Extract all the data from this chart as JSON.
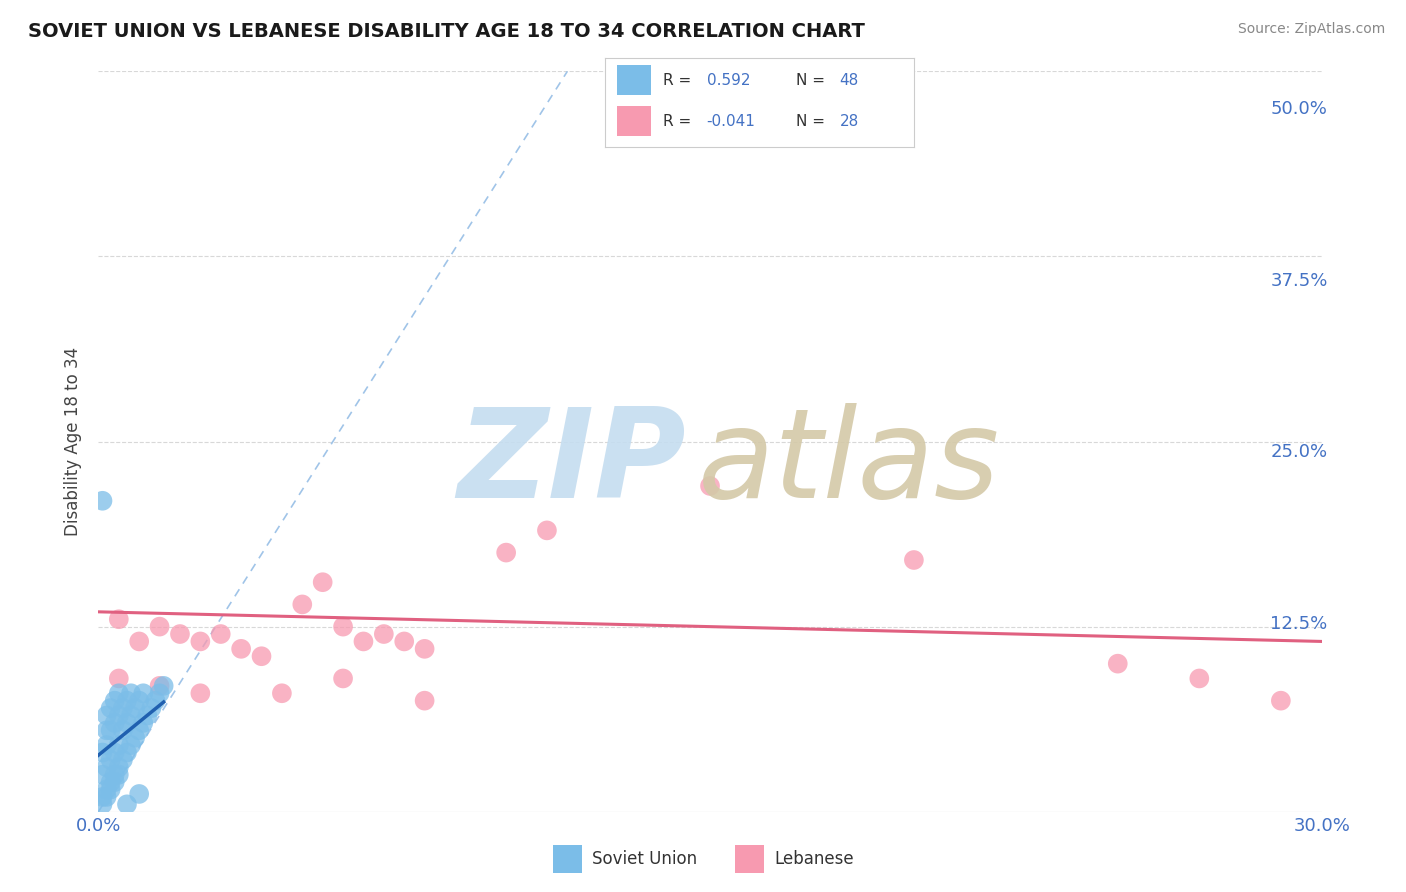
{
  "title": "SOVIET UNION VS LEBANESE DISABILITY AGE 18 TO 34 CORRELATION CHART",
  "source_text": "Source: ZipAtlas.com",
  "ylabel_label": "Disability Age 18 to 34",
  "xlim": [
    0.0,
    0.3
  ],
  "ylim": [
    0.0,
    0.5
  ],
  "xtick_labels": [
    "0.0%",
    "30.0%"
  ],
  "ytick_vals": [
    0.0,
    0.125,
    0.25,
    0.375,
    0.5
  ],
  "ytick_labels": [
    "",
    "12.5%",
    "25.0%",
    "37.5%",
    "50.0%"
  ],
  "soviet_color": "#7bbde8",
  "lebanese_color": "#f79ab0",
  "soviet_R": 0.592,
  "soviet_N": 48,
  "lebanese_R": -0.041,
  "lebanese_N": 28,
  "background_color": "#ffffff",
  "grid_color": "#d8d8d8",
  "soviet_trend_color": "#2060b0",
  "lebanese_trend_color": "#e06080",
  "diag_color": "#a0c4e8",
  "soviet_x": [
    0.001,
    0.001,
    0.001,
    0.001,
    0.002,
    0.002,
    0.002,
    0.002,
    0.002,
    0.003,
    0.003,
    0.003,
    0.003,
    0.004,
    0.004,
    0.004,
    0.004,
    0.005,
    0.005,
    0.005,
    0.005,
    0.006,
    0.006,
    0.006,
    0.007,
    0.007,
    0.007,
    0.008,
    0.008,
    0.008,
    0.009,
    0.009,
    0.01,
    0.01,
    0.011,
    0.011,
    0.012,
    0.013,
    0.014,
    0.015,
    0.016,
    0.001,
    0.002,
    0.003,
    0.004,
    0.005,
    0.007,
    0.01
  ],
  "soviet_y": [
    0.005,
    0.01,
    0.025,
    0.04,
    0.015,
    0.03,
    0.045,
    0.055,
    0.065,
    0.02,
    0.035,
    0.055,
    0.07,
    0.025,
    0.04,
    0.06,
    0.075,
    0.03,
    0.045,
    0.065,
    0.08,
    0.035,
    0.055,
    0.07,
    0.04,
    0.06,
    0.075,
    0.045,
    0.065,
    0.08,
    0.05,
    0.07,
    0.055,
    0.075,
    0.06,
    0.08,
    0.065,
    0.07,
    0.075,
    0.08,
    0.085,
    0.21,
    0.01,
    0.015,
    0.02,
    0.025,
    0.005,
    0.012
  ],
  "lebanese_x": [
    0.005,
    0.01,
    0.015,
    0.02,
    0.025,
    0.03,
    0.035,
    0.04,
    0.05,
    0.055,
    0.06,
    0.065,
    0.07,
    0.075,
    0.08,
    0.1,
    0.11,
    0.15,
    0.2,
    0.25,
    0.27,
    0.29,
    0.005,
    0.015,
    0.025,
    0.045,
    0.06,
    0.08
  ],
  "lebanese_y": [
    0.13,
    0.115,
    0.125,
    0.12,
    0.115,
    0.12,
    0.11,
    0.105,
    0.14,
    0.155,
    0.125,
    0.115,
    0.12,
    0.115,
    0.11,
    0.175,
    0.19,
    0.22,
    0.17,
    0.1,
    0.09,
    0.075,
    0.09,
    0.085,
    0.08,
    0.08,
    0.09,
    0.075
  ]
}
